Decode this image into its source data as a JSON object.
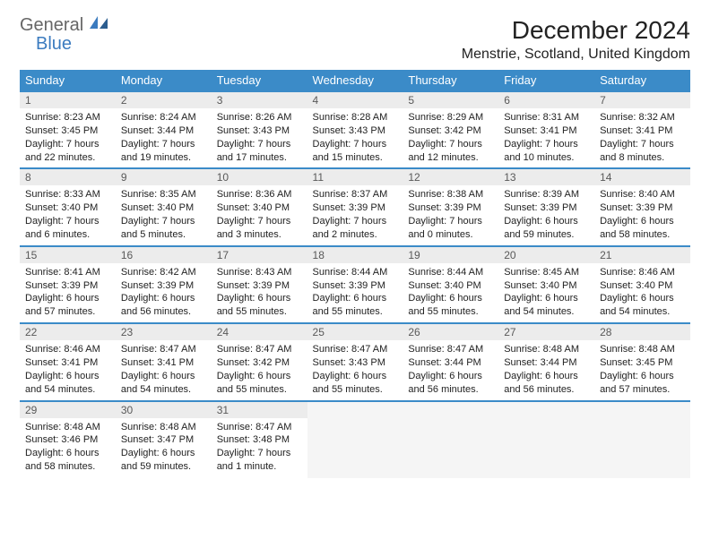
{
  "logo": {
    "word1": "General",
    "word2": "Blue"
  },
  "title": "December 2024",
  "location": "Menstrie, Scotland, United Kingdom",
  "colors": {
    "header_bg": "#3b8bc8",
    "header_text": "#ffffff",
    "border": "#3b8bc8",
    "daynum_bg": "#ececec",
    "daynum_text": "#595959",
    "body_text": "#222222",
    "logo_gray": "#666666",
    "logo_blue": "#3b7bbf",
    "empty_bg": "#f5f5f5"
  },
  "weekdays": [
    "Sunday",
    "Monday",
    "Tuesday",
    "Wednesday",
    "Thursday",
    "Friday",
    "Saturday"
  ],
  "days": [
    {
      "n": "1",
      "sr": "Sunrise: 8:23 AM",
      "ss": "Sunset: 3:45 PM",
      "dl1": "Daylight: 7 hours",
      "dl2": "and 22 minutes."
    },
    {
      "n": "2",
      "sr": "Sunrise: 8:24 AM",
      "ss": "Sunset: 3:44 PM",
      "dl1": "Daylight: 7 hours",
      "dl2": "and 19 minutes."
    },
    {
      "n": "3",
      "sr": "Sunrise: 8:26 AM",
      "ss": "Sunset: 3:43 PM",
      "dl1": "Daylight: 7 hours",
      "dl2": "and 17 minutes."
    },
    {
      "n": "4",
      "sr": "Sunrise: 8:28 AM",
      "ss": "Sunset: 3:43 PM",
      "dl1": "Daylight: 7 hours",
      "dl2": "and 15 minutes."
    },
    {
      "n": "5",
      "sr": "Sunrise: 8:29 AM",
      "ss": "Sunset: 3:42 PM",
      "dl1": "Daylight: 7 hours",
      "dl2": "and 12 minutes."
    },
    {
      "n": "6",
      "sr": "Sunrise: 8:31 AM",
      "ss": "Sunset: 3:41 PM",
      "dl1": "Daylight: 7 hours",
      "dl2": "and 10 minutes."
    },
    {
      "n": "7",
      "sr": "Sunrise: 8:32 AM",
      "ss": "Sunset: 3:41 PM",
      "dl1": "Daylight: 7 hours",
      "dl2": "and 8 minutes."
    },
    {
      "n": "8",
      "sr": "Sunrise: 8:33 AM",
      "ss": "Sunset: 3:40 PM",
      "dl1": "Daylight: 7 hours",
      "dl2": "and 6 minutes."
    },
    {
      "n": "9",
      "sr": "Sunrise: 8:35 AM",
      "ss": "Sunset: 3:40 PM",
      "dl1": "Daylight: 7 hours",
      "dl2": "and 5 minutes."
    },
    {
      "n": "10",
      "sr": "Sunrise: 8:36 AM",
      "ss": "Sunset: 3:40 PM",
      "dl1": "Daylight: 7 hours",
      "dl2": "and 3 minutes."
    },
    {
      "n": "11",
      "sr": "Sunrise: 8:37 AM",
      "ss": "Sunset: 3:39 PM",
      "dl1": "Daylight: 7 hours",
      "dl2": "and 2 minutes."
    },
    {
      "n": "12",
      "sr": "Sunrise: 8:38 AM",
      "ss": "Sunset: 3:39 PM",
      "dl1": "Daylight: 7 hours",
      "dl2": "and 0 minutes."
    },
    {
      "n": "13",
      "sr": "Sunrise: 8:39 AM",
      "ss": "Sunset: 3:39 PM",
      "dl1": "Daylight: 6 hours",
      "dl2": "and 59 minutes."
    },
    {
      "n": "14",
      "sr": "Sunrise: 8:40 AM",
      "ss": "Sunset: 3:39 PM",
      "dl1": "Daylight: 6 hours",
      "dl2": "and 58 minutes."
    },
    {
      "n": "15",
      "sr": "Sunrise: 8:41 AM",
      "ss": "Sunset: 3:39 PM",
      "dl1": "Daylight: 6 hours",
      "dl2": "and 57 minutes."
    },
    {
      "n": "16",
      "sr": "Sunrise: 8:42 AM",
      "ss": "Sunset: 3:39 PM",
      "dl1": "Daylight: 6 hours",
      "dl2": "and 56 minutes."
    },
    {
      "n": "17",
      "sr": "Sunrise: 8:43 AM",
      "ss": "Sunset: 3:39 PM",
      "dl1": "Daylight: 6 hours",
      "dl2": "and 55 minutes."
    },
    {
      "n": "18",
      "sr": "Sunrise: 8:44 AM",
      "ss": "Sunset: 3:39 PM",
      "dl1": "Daylight: 6 hours",
      "dl2": "and 55 minutes."
    },
    {
      "n": "19",
      "sr": "Sunrise: 8:44 AM",
      "ss": "Sunset: 3:40 PM",
      "dl1": "Daylight: 6 hours",
      "dl2": "and 55 minutes."
    },
    {
      "n": "20",
      "sr": "Sunrise: 8:45 AM",
      "ss": "Sunset: 3:40 PM",
      "dl1": "Daylight: 6 hours",
      "dl2": "and 54 minutes."
    },
    {
      "n": "21",
      "sr": "Sunrise: 8:46 AM",
      "ss": "Sunset: 3:40 PM",
      "dl1": "Daylight: 6 hours",
      "dl2": "and 54 minutes."
    },
    {
      "n": "22",
      "sr": "Sunrise: 8:46 AM",
      "ss": "Sunset: 3:41 PM",
      "dl1": "Daylight: 6 hours",
      "dl2": "and 54 minutes."
    },
    {
      "n": "23",
      "sr": "Sunrise: 8:47 AM",
      "ss": "Sunset: 3:41 PM",
      "dl1": "Daylight: 6 hours",
      "dl2": "and 54 minutes."
    },
    {
      "n": "24",
      "sr": "Sunrise: 8:47 AM",
      "ss": "Sunset: 3:42 PM",
      "dl1": "Daylight: 6 hours",
      "dl2": "and 55 minutes."
    },
    {
      "n": "25",
      "sr": "Sunrise: 8:47 AM",
      "ss": "Sunset: 3:43 PM",
      "dl1": "Daylight: 6 hours",
      "dl2": "and 55 minutes."
    },
    {
      "n": "26",
      "sr": "Sunrise: 8:47 AM",
      "ss": "Sunset: 3:44 PM",
      "dl1": "Daylight: 6 hours",
      "dl2": "and 56 minutes."
    },
    {
      "n": "27",
      "sr": "Sunrise: 8:48 AM",
      "ss": "Sunset: 3:44 PM",
      "dl1": "Daylight: 6 hours",
      "dl2": "and 56 minutes."
    },
    {
      "n": "28",
      "sr": "Sunrise: 8:48 AM",
      "ss": "Sunset: 3:45 PM",
      "dl1": "Daylight: 6 hours",
      "dl2": "and 57 minutes."
    },
    {
      "n": "29",
      "sr": "Sunrise: 8:48 AM",
      "ss": "Sunset: 3:46 PM",
      "dl1": "Daylight: 6 hours",
      "dl2": "and 58 minutes."
    },
    {
      "n": "30",
      "sr": "Sunrise: 8:48 AM",
      "ss": "Sunset: 3:47 PM",
      "dl1": "Daylight: 6 hours",
      "dl2": "and 59 minutes."
    },
    {
      "n": "31",
      "sr": "Sunrise: 8:47 AM",
      "ss": "Sunset: 3:48 PM",
      "dl1": "Daylight: 7 hours",
      "dl2": "and 1 minute."
    }
  ]
}
